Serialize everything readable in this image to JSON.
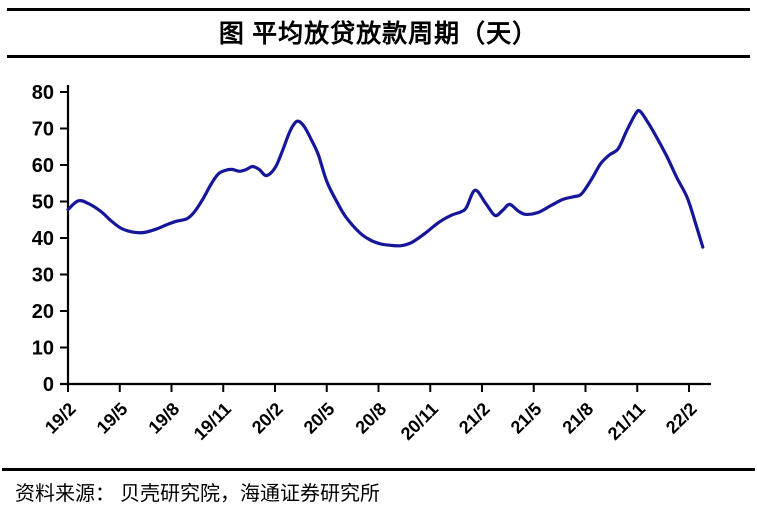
{
  "header": {
    "title": "图 平均放贷放款周期（天）"
  },
  "footer": {
    "source": "资料来源： 贝壳研究院，海通证券研究所"
  },
  "colors": {
    "background": "#ffffff",
    "axis": "#000000",
    "text": "#000000",
    "line": "#16169A"
  },
  "chart_data": {
    "type": "line",
    "title": "图 平均放贷放款周期（天）",
    "xlabel": "",
    "ylabel": "",
    "ylim": [
      0,
      80
    ],
    "y_ticks": [
      0,
      10,
      20,
      30,
      40,
      50,
      60,
      70,
      80
    ],
    "x_tick_labels": [
      "19/2",
      "19/5",
      "19/8",
      "19/11",
      "20/2",
      "20/5",
      "20/8",
      "20/11",
      "21/2",
      "21/5",
      "21/8",
      "21/11",
      "22/2"
    ],
    "x_tick_positions_months": [
      0,
      3,
      6,
      9,
      12,
      15,
      18,
      21,
      24,
      27,
      30,
      33,
      36
    ],
    "x_unit": "months since 2019/2",
    "grid": false,
    "legend": "none",
    "series": [
      {
        "name": "平均放贷放款周期（天）",
        "color": "#16169A",
        "points_month_value": [
          [
            0.0,
            47.8
          ],
          [
            0.6,
            50.2
          ],
          [
            1.2,
            49.4
          ],
          [
            1.9,
            47.3
          ],
          [
            2.5,
            44.7
          ],
          [
            3.1,
            42.6
          ],
          [
            3.8,
            41.6
          ],
          [
            4.4,
            41.5
          ],
          [
            5.1,
            42.4
          ],
          [
            5.7,
            43.6
          ],
          [
            6.3,
            44.6
          ],
          [
            6.9,
            45.3
          ],
          [
            7.3,
            47.0
          ],
          [
            7.8,
            50.5
          ],
          [
            8.3,
            54.8
          ],
          [
            8.7,
            57.5
          ],
          [
            9.1,
            58.5
          ],
          [
            9.5,
            58.8
          ],
          [
            9.9,
            58.3
          ],
          [
            10.3,
            58.7
          ],
          [
            10.7,
            59.6
          ],
          [
            11.1,
            58.7
          ],
          [
            11.5,
            57.1
          ],
          [
            12.0,
            59.2
          ],
          [
            12.4,
            63.5
          ],
          [
            12.8,
            68.5
          ],
          [
            13.1,
            71.2
          ],
          [
            13.35,
            72.0
          ],
          [
            13.7,
            70.5
          ],
          [
            14.1,
            67.0
          ],
          [
            14.5,
            63.0
          ],
          [
            15.0,
            55.5
          ],
          [
            15.6,
            49.8
          ],
          [
            16.1,
            45.8
          ],
          [
            16.9,
            41.5
          ],
          [
            17.5,
            39.5
          ],
          [
            18.1,
            38.4
          ],
          [
            18.7,
            38.0
          ],
          [
            19.3,
            37.9
          ],
          [
            19.9,
            38.7
          ],
          [
            20.7,
            41.3
          ],
          [
            21.5,
            44.3
          ],
          [
            22.2,
            46.2
          ],
          [
            22.8,
            47.2
          ],
          [
            23.1,
            48.4
          ],
          [
            23.6,
            53.1
          ],
          [
            24.2,
            49.6
          ],
          [
            24.75,
            46.2
          ],
          [
            25.2,
            47.6
          ],
          [
            25.6,
            49.2
          ],
          [
            26.1,
            47.4
          ],
          [
            26.5,
            46.5
          ],
          [
            27.2,
            46.9
          ],
          [
            28.0,
            48.9
          ],
          [
            28.7,
            50.6
          ],
          [
            29.3,
            51.3
          ],
          [
            29.7,
            51.8
          ],
          [
            30.0,
            53.5
          ],
          [
            30.4,
            56.5
          ],
          [
            30.9,
            60.5
          ],
          [
            31.4,
            62.8
          ],
          [
            31.9,
            64.5
          ],
          [
            32.4,
            69.5
          ],
          [
            32.9,
            74.0
          ],
          [
            33.15,
            74.8
          ],
          [
            33.6,
            71.8
          ],
          [
            34.1,
            67.8
          ],
          [
            34.7,
            62.5
          ],
          [
            35.3,
            56.5
          ],
          [
            35.9,
            51.0
          ],
          [
            36.35,
            44.5
          ],
          [
            36.8,
            37.5
          ]
        ]
      }
    ]
  }
}
